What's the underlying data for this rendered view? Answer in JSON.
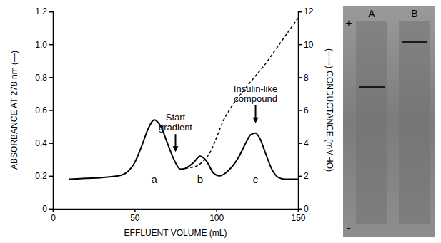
{
  "chart_data": {
    "type": "line",
    "x_label": "EFFLUENT VOLUME (mL)",
    "y_label": "ABSORBANCE AT 278 nm (—)",
    "y2_label": "(-----) CONDUCTANCE (mMHO)",
    "xlim": [
      0,
      150
    ],
    "xticks": [
      0,
      50,
      100,
      150
    ],
    "ylim": [
      0,
      1.2
    ],
    "yticks": [
      0,
      0.2,
      0.4,
      0.6,
      0.8,
      {
        "value": 1,
        "label": "1.0"
      },
      1.2
    ],
    "y2lim": [
      0,
      12
    ],
    "y2ticks": [
      0,
      2,
      4,
      6,
      8,
      10,
      12
    ],
    "grid": false,
    "series": [
      {
        "name": "ABSORBANCE AT 278 nm",
        "color": "#000000",
        "line_style": "solid",
        "x": [
          10,
          20,
          30,
          40,
          45,
          50,
          55,
          58,
          62,
          66,
          70,
          74,
          78,
          82,
          86,
          90,
          94,
          98,
          102,
          106,
          110,
          114,
          118,
          121,
          124,
          127,
          130,
          134,
          138,
          142,
          146,
          150
        ],
        "values": [
          0.18,
          0.185,
          0.19,
          0.2,
          0.22,
          0.28,
          0.4,
          0.48,
          0.54,
          0.5,
          0.4,
          0.3,
          0.24,
          0.25,
          0.28,
          0.32,
          0.29,
          0.22,
          0.2,
          0.22,
          0.26,
          0.32,
          0.4,
          0.45,
          0.46,
          0.42,
          0.34,
          0.24,
          0.19,
          0.18,
          0.18,
          0.18
        ]
      },
      {
        "name": "CONDUCTANCE",
        "color": "#000000",
        "line_style": "dashed",
        "axis": "y2",
        "x": [
          78,
          84,
          88,
          92,
          96,
          100,
          104,
          108,
          112,
          116,
          120,
          125,
          130,
          135,
          140,
          145,
          150
        ],
        "values": [
          2.4,
          2.5,
          2.6,
          2.9,
          3.4,
          4.3,
          5.3,
          6.0,
          6.6,
          7.1,
          7.6,
          8.2,
          8.8,
          9.5,
          10.2,
          10.9,
          11.6
        ]
      }
    ],
    "annotations": [
      {
        "text": "Start gradient",
        "x": 75
      },
      {
        "text": "Insulin-like compound",
        "x": 124
      }
    ],
    "peak_labels": [
      {
        "text": "a",
        "x": 62
      },
      {
        "text": "b",
        "x": 90
      },
      {
        "text": "c",
        "x": 124
      }
    ]
  },
  "gel": {
    "lanes": [
      "A",
      "B"
    ],
    "top_label": "+",
    "bottom_label": "-"
  }
}
